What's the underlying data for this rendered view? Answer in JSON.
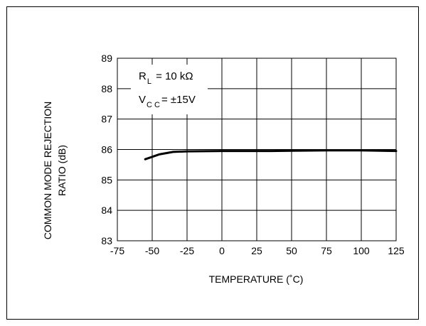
{
  "chart_data": {
    "type": "line",
    "title": "",
    "xlabel": "TEMPERATURE (˚C)",
    "ylabel_line1": "COMMON MODE REJECTION",
    "ylabel_line2": "RATIO (dB)",
    "xlim": [
      -75,
      125
    ],
    "ylim": [
      83,
      89
    ],
    "xticks": [
      -75,
      -50,
      -25,
      0,
      25,
      50,
      75,
      100,
      125
    ],
    "yticks": [
      83,
      84,
      85,
      86,
      87,
      88,
      89
    ],
    "grid": true,
    "annotation": {
      "rl_main": "R",
      "rl_sub": "L",
      "rl_value": " = 10 kΩ",
      "vcc_main": "V",
      "vcc_sub": "C C",
      "vcc_value": "= ±15V"
    },
    "series": [
      {
        "x": [
          -55,
          -50,
          -45,
          -40,
          -35,
          -25,
          0,
          25,
          35,
          50,
          75,
          100,
          125
        ],
        "y": [
          85.68,
          85.76,
          85.84,
          85.88,
          85.92,
          85.94,
          85.95,
          85.95,
          85.95,
          85.96,
          85.97,
          85.97,
          85.95
        ]
      }
    ],
    "line_color": "#000000"
  }
}
